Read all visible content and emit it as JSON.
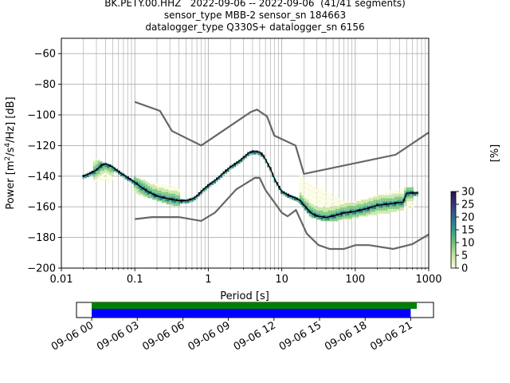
{
  "title_lines": [
    "BK.PETY.00.HHZ   2022-09-06 -- 2022-09-06  (41/41 segments)",
    "sensor_type MBB-2 sensor_sn 184663",
    "datalogger_type Q330S+ datalogger_sn 6156"
  ],
  "colors": {
    "mean_line": "#000000",
    "noise_models": "#666666",
    "grid": "#b0b0b0",
    "coverage_data": "#008000",
    "coverage_gaps": "#0000ff",
    "colormap": [
      "#fbfbd9",
      "#c6e6a3",
      "#74c479",
      "#2e9f8a",
      "#2f6b97",
      "#3b3680",
      "#2a0f45"
    ]
  },
  "chart_data": [
    {
      "type": "heatmap",
      "xlabel": "Period [s]",
      "ylabel": "Power [m²/s⁴/Hz] [dB]",
      "xscale": "log",
      "xlim": [
        0.01,
        1000
      ],
      "ylim": [
        -200,
        -50
      ],
      "grid": true,
      "x_ticks": [
        0.01,
        0.1,
        1,
        10,
        100,
        1000
      ],
      "x_tick_labels": [
        "0.01",
        "0.1",
        "1",
        "10",
        "100",
        "1000"
      ],
      "y_ticks": [
        -200,
        -180,
        -160,
        -140,
        -120,
        -100,
        -80,
        -60
      ],
      "y_tick_labels": [
        "−200",
        "−180",
        "−160",
        "−140",
        "−120",
        "−100",
        "−80",
        "−60"
      ],
      "colorbar": {
        "label": "[%]",
        "range": [
          0,
          30
        ],
        "ticks": [
          0,
          5,
          10,
          15,
          20,
          25,
          30
        ],
        "tick_labels": [
          "0",
          "5",
          "10",
          "15",
          "20",
          "25",
          "30"
        ]
      },
      "mean_psd": {
        "period": [
          0.02,
          0.025,
          0.03,
          0.035,
          0.04,
          0.05,
          0.06,
          0.08,
          0.1,
          0.12,
          0.15,
          0.2,
          0.3,
          0.4,
          0.5,
          0.6,
          0.7,
          0.8,
          1.0,
          1.3,
          1.6,
          2.0,
          2.5,
          3.0,
          3.5,
          4.0,
          4.5,
          5.0,
          5.5,
          6.0,
          7.0,
          8.0,
          10.0,
          13.0,
          15.0,
          18.0,
          20.0,
          25.0,
          30.0,
          40.0,
          50.0,
          70.0,
          100.0,
          150.0,
          200.0,
          300.0,
          450.0,
          500.0,
          700.0
        ],
        "power_db": [
          -140,
          -138,
          -136,
          -133,
          -132,
          -134,
          -137,
          -141,
          -144,
          -147,
          -150,
          -153,
          -155,
          -156,
          -156,
          -155,
          -153,
          -150,
          -146,
          -142,
          -138,
          -134,
          -131,
          -128,
          -125,
          -124,
          -124,
          -124.5,
          -126,
          -129,
          -135,
          -142,
          -150,
          -153,
          -154,
          -156,
          -159,
          -164,
          -166,
          -167,
          -166,
          -164,
          -163,
          -161,
          -159,
          -158,
          -157,
          -151,
          -151
        ]
      },
      "high_noise_model": {
        "period": [
          0.1,
          0.22,
          0.32,
          0.8,
          3.8,
          4.6,
          6.3,
          7.9,
          15.4,
          20.0,
          354.8,
          1000
        ],
        "power_db": [
          -91.5,
          -97.4,
          -110.5,
          -120,
          -98,
          -96.5,
          -101,
          -113.5,
          -120,
          -138.5,
          -126,
          -111.5
        ]
      },
      "low_noise_model": {
        "period": [
          0.1,
          0.17,
          0.4,
          0.8,
          1.24,
          2.4,
          4.3,
          5.0,
          6.0,
          10.0,
          12.0,
          15.6,
          21.9,
          31.6,
          45.0,
          70.0,
          101.0,
          154.0,
          328.0,
          600.0,
          1000
        ],
        "power_db": [
          -168,
          -166.7,
          -166.7,
          -169.2,
          -163.7,
          -148.6,
          -141.1,
          -141.1,
          -149,
          -163.8,
          -166.2,
          -162.1,
          -177.5,
          -185,
          -187.5,
          -187.5,
          -185,
          -185,
          -187.5,
          -184.4,
          -178
        ]
      },
      "spread": [
        {
          "period": [
            0.028,
            0.034,
            0.04,
            0.05
          ],
          "high_db": [
            -128,
            -130,
            -132,
            -135
          ],
          "low_db": [
            -142,
            -143,
            -142,
            -143
          ]
        },
        {
          "period": [
            0.1,
            0.2,
            0.3,
            0.4
          ],
          "high_db": [
            -141,
            -145,
            -146,
            -148
          ],
          "low_db": [
            -150,
            -155,
            -158,
            -159
          ]
        },
        {
          "period": [
            18,
            25,
            40,
            60,
            90,
            150,
            300,
            600
          ],
          "high_db": [
            -140,
            -145,
            -150,
            -155,
            -157,
            -154,
            -150,
            -147
          ],
          "low_db": [
            -158,
            -166,
            -169,
            -168,
            -167,
            -165,
            -163,
            -160
          ]
        }
      ]
    },
    {
      "type": "bar",
      "title": "",
      "x_tick_labels": [
        "09-06 00",
        "09-06 03",
        "09-06 06",
        "09-06 09",
        "09-06 12",
        "09-06 15",
        "09-06 18",
        "09-06 21"
      ],
      "x_ticks_hours": [
        0,
        3,
        6,
        9,
        12,
        15,
        18,
        21
      ],
      "xlim_hours": [
        -1,
        22.5
      ],
      "data_coverage_hours": [
        0,
        21.4
      ],
      "gap_coverage_hours": [
        0,
        21.0
      ]
    }
  ]
}
